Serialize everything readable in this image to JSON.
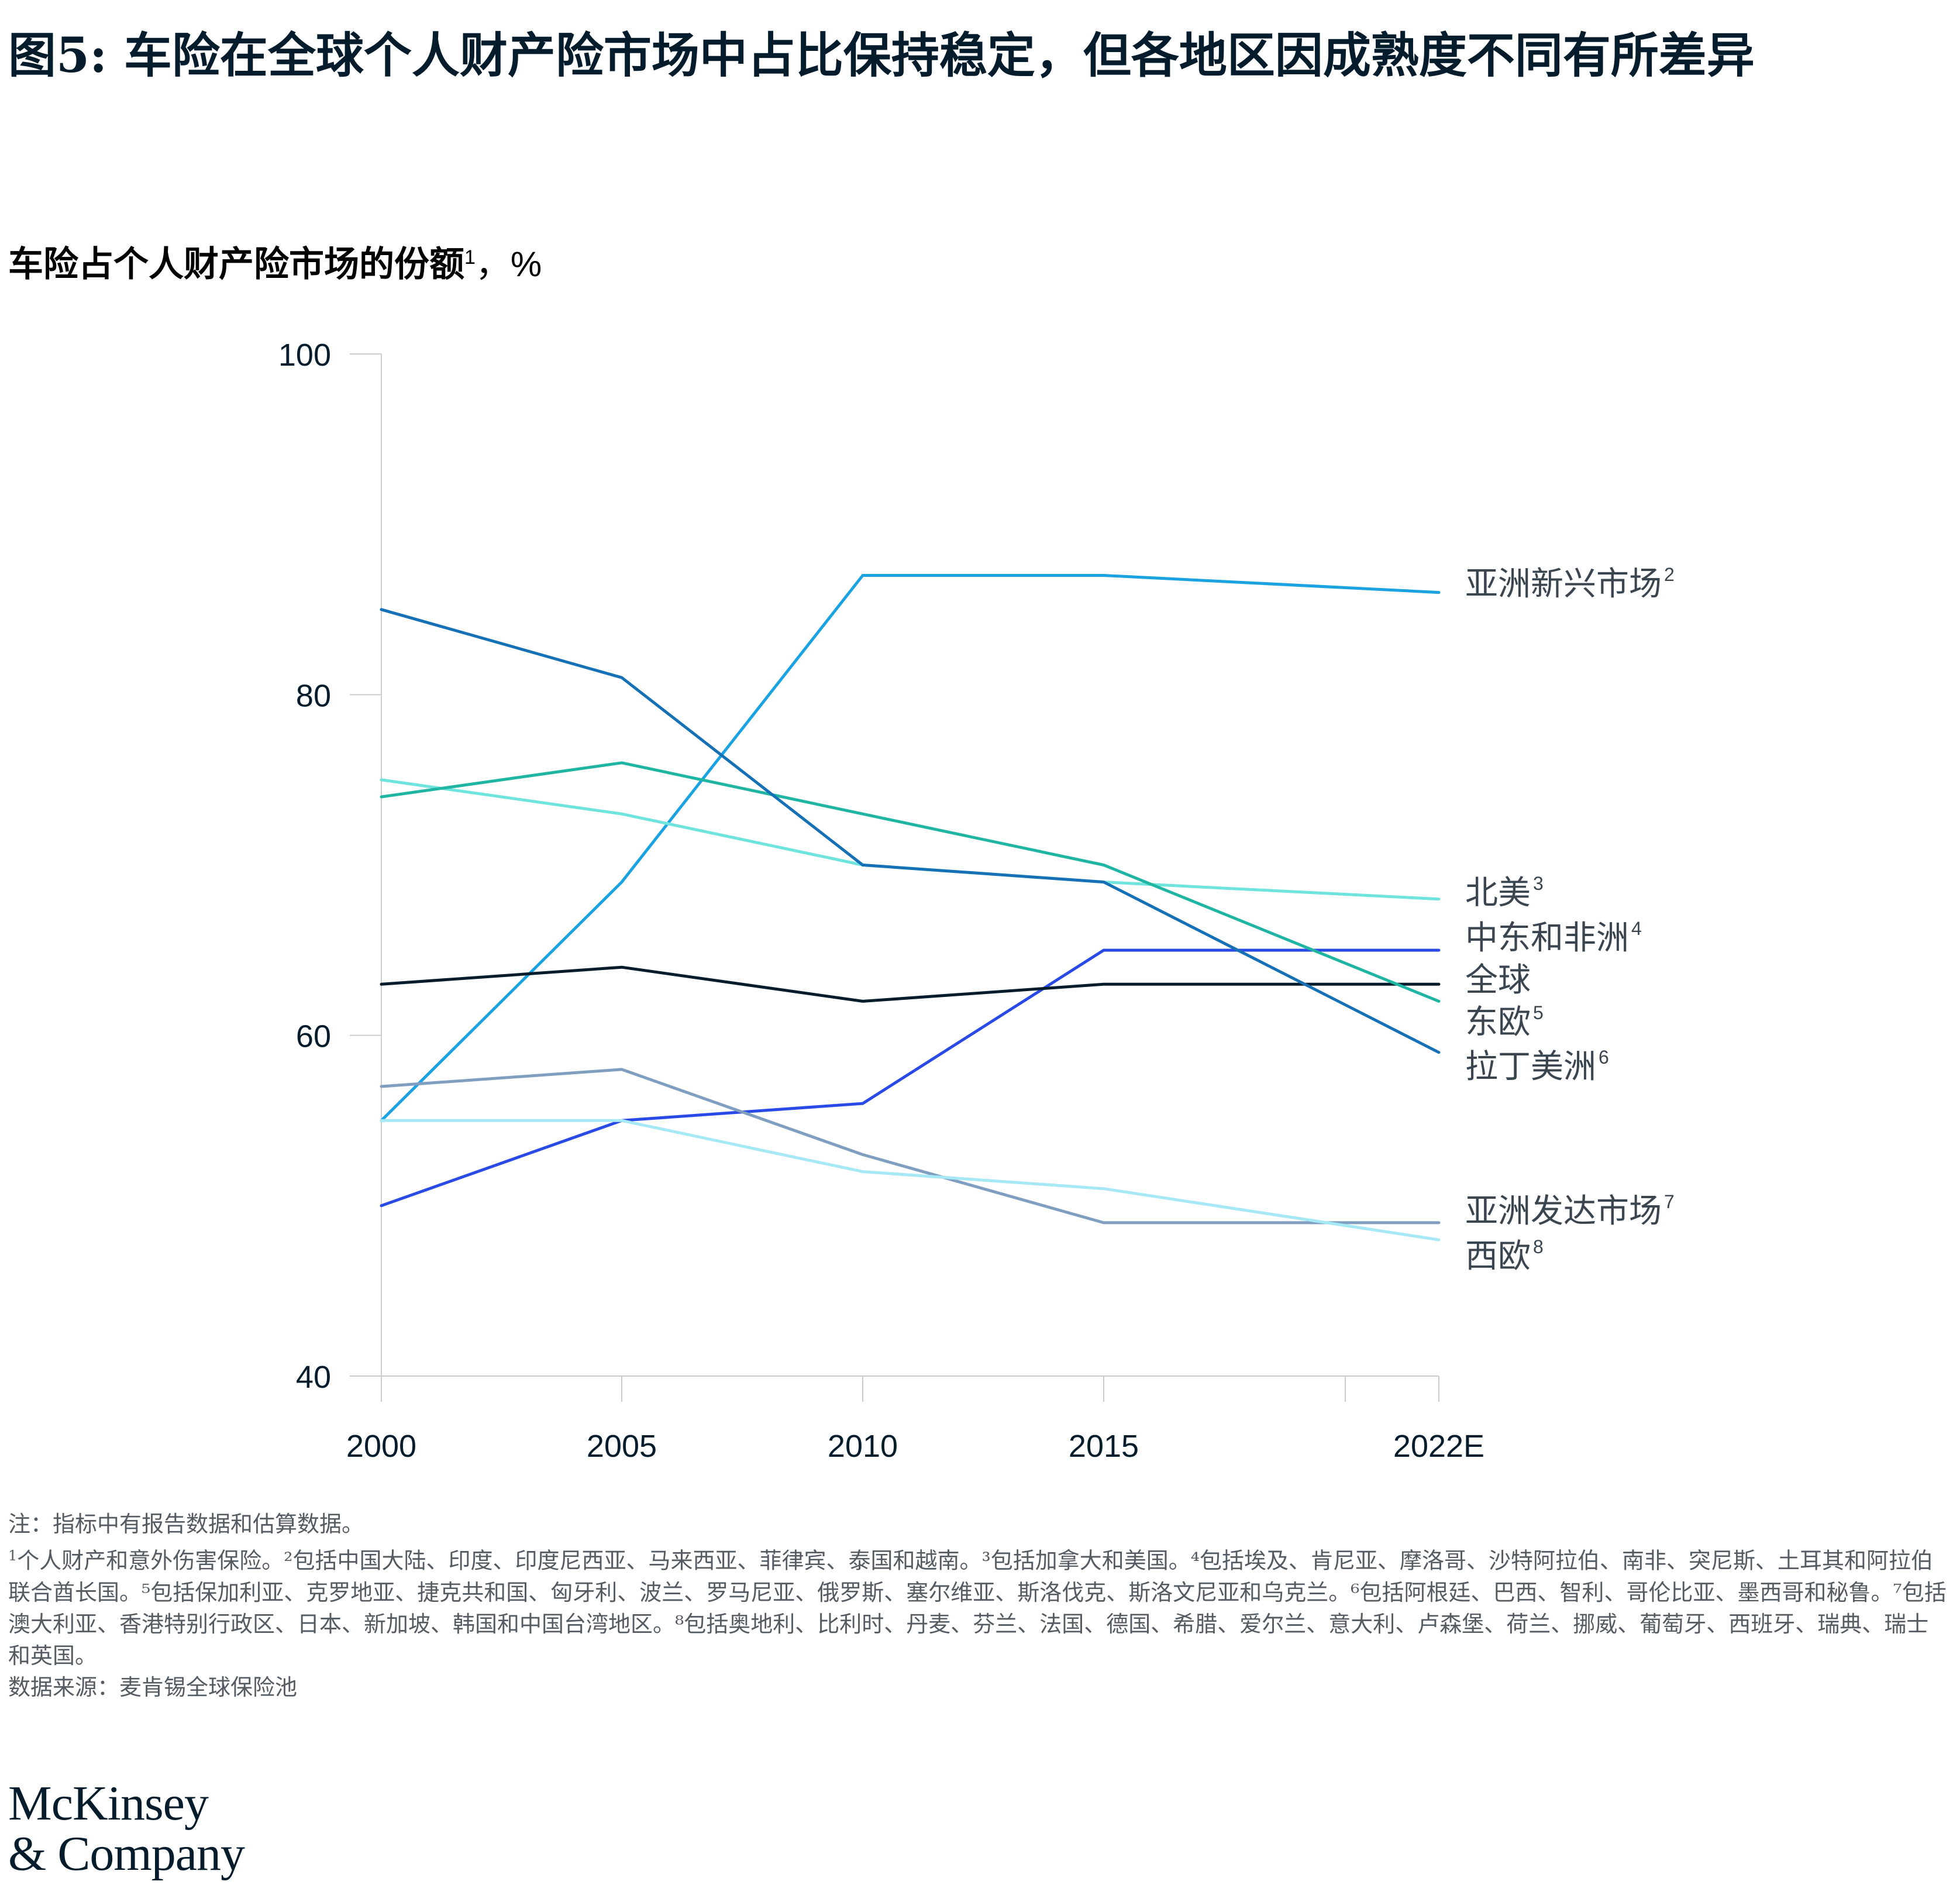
{
  "title": "图5: 车险在全球个人财产险市场中占比保持稳定，但各地区因成熟度不同有所差异",
  "subtitle": {
    "text": "车险占个人财产险市场的份额",
    "sup": "1",
    "unit": "，%"
  },
  "chart_data": {
    "type": "line",
    "title": "车险占个人财产险市场的份额",
    "ylabel": "%",
    "x": [
      "2000",
      "2005",
      "2010",
      "2015",
      "2022E"
    ],
    "ylim": [
      40,
      100
    ],
    "yticks": [
      "40",
      "60",
      "80",
      "100"
    ],
    "grid": false,
    "legend": "right",
    "series": [
      {
        "name": "亚洲新兴市场",
        "sup": "2",
        "color": "#1aa3e0",
        "values": [
          55,
          69,
          87,
          87,
          86
        ]
      },
      {
        "name": "北美",
        "sup": "3",
        "color": "#6fe3dd",
        "values": [
          75,
          73,
          70,
          69,
          68
        ]
      },
      {
        "name": "中东和非洲",
        "sup": "4",
        "color": "#2a4ae6",
        "values": [
          50,
          55,
          56,
          65,
          65
        ]
      },
      {
        "name": "全球",
        "sup": "",
        "color": "#051c2c",
        "values": [
          63,
          64,
          62,
          63,
          63
        ]
      },
      {
        "name": "东欧",
        "sup": "5",
        "color": "#1fb5a2",
        "values": [
          74,
          76,
          73,
          70,
          62
        ]
      },
      {
        "name": "拉丁美洲",
        "sup": "6",
        "color": "#1670b5",
        "values": [
          85,
          81,
          70,
          69,
          59
        ]
      },
      {
        "name": "亚洲发达市场",
        "sup": "7",
        "color": "#7f9ec0",
        "values": [
          57,
          58,
          53,
          49,
          49
        ]
      },
      {
        "name": "西欧",
        "sup": "8",
        "color": "#a6e8f5",
        "values": [
          55,
          55,
          52,
          51,
          48
        ]
      }
    ]
  },
  "notes": {
    "line1": "注：指标中有报告数据和估算数据。",
    "line2": "个人财产和意外伤害保险。²包括中国大陆、印度、印度尼西亚、马来西亚、菲律宾、泰国和越南。³包括加拿大和美国。⁴包括埃及、肯尼亚、摩洛哥、沙特阿拉伯、南非、突尼斯、土耳其和阿拉伯联合酋长国。⁵包括保加利亚、克罗地亚、捷克共和国、匈牙利、波兰、罗马尼亚、俄罗斯、塞尔维亚、斯洛伐克、斯洛文尼亚和乌克兰。⁶包括阿根廷、巴西、智利、哥伦比亚、墨西哥和秘鲁。⁷包括澳大利亚、香港特别行政区、日本、新加坡、韩国和中国台湾地区。⁸包括奥地利、比利时、丹麦、芬兰、法国、德国、希腊、爱尔兰、意大利、卢森堡、荷兰、挪威、葡萄牙、西班牙、瑞典、瑞士和英国。",
    "line2_sup": "1",
    "source": "数据来源：麦肯锡全球保险池"
  },
  "logo": {
    "line1": "McKinsey",
    "line2": "& Company"
  }
}
